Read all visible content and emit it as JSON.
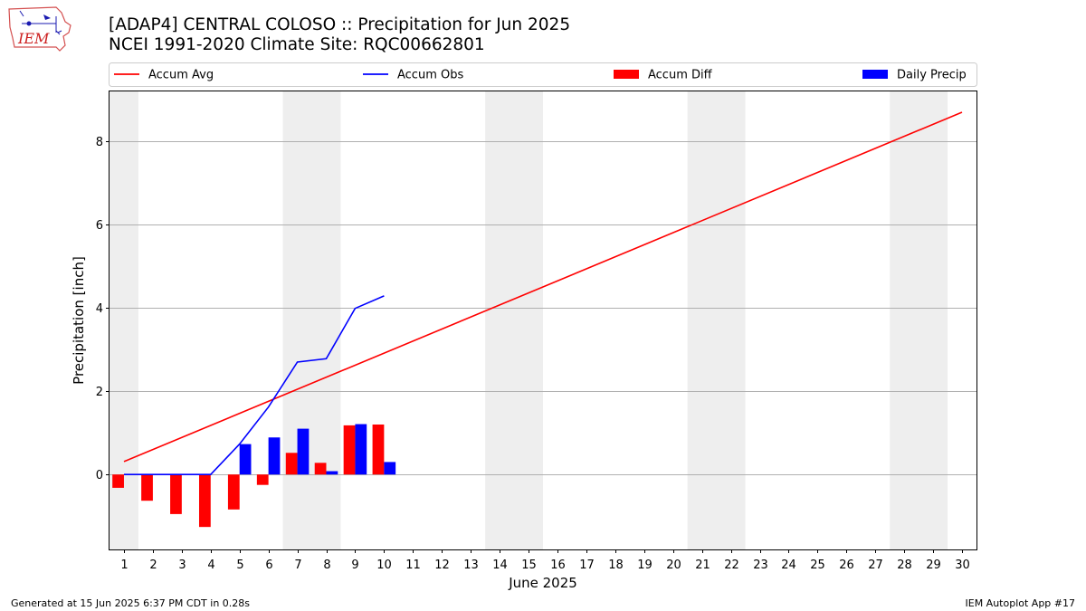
{
  "header": {
    "title": "[ADAP4] CENTRAL COLOSO :: Precipitation for Jun 2025",
    "subtitle": "NCEI 1991-2020 Climate Site: RQC00662801",
    "logo_text": "IEM"
  },
  "footer": {
    "generated": "Generated at 15 Jun 2025 6:37 PM CDT in 0.28s",
    "app": "IEM Autoplot App #17"
  },
  "chart_data": {
    "type": "bar",
    "xlabel": "June 2025",
    "ylabel": "Precipitation [inch]",
    "xlim": [
      0.5,
      30.5
    ],
    "ylim": [
      -1.8,
      9.2
    ],
    "x_ticks": [
      1,
      2,
      3,
      4,
      5,
      6,
      7,
      8,
      9,
      10,
      11,
      12,
      13,
      14,
      15,
      16,
      17,
      18,
      19,
      20,
      21,
      22,
      23,
      24,
      25,
      26,
      27,
      28,
      29,
      30
    ],
    "y_ticks": [
      0,
      2,
      4,
      6,
      8
    ],
    "grid": "horizontal",
    "legend_position": "top",
    "weekend_shading": [
      [
        0.5,
        1.5
      ],
      [
        6.5,
        8.5
      ],
      [
        13.5,
        15.5
      ],
      [
        20.5,
        22.5
      ],
      [
        27.5,
        29.5
      ]
    ],
    "series": [
      {
        "name": "Accum Avg",
        "kind": "line",
        "color": "#ff0000",
        "x": [
          1,
          30
        ],
        "values": [
          0.31,
          8.7
        ]
      },
      {
        "name": "Accum Obs",
        "kind": "line",
        "color": "#0000ff",
        "x": [
          1,
          2,
          3,
          4,
          5,
          6,
          7,
          8,
          9,
          10
        ],
        "values": [
          0.0,
          0.0,
          0.0,
          0.0,
          0.73,
          1.62,
          2.7,
          2.78,
          3.99,
          4.29
        ]
      },
      {
        "name": "Accum Diff",
        "kind": "bar",
        "color": "#ff0000",
        "offset": -0.2,
        "x": [
          1,
          2,
          3,
          4,
          5,
          6,
          7,
          8,
          9,
          10
        ],
        "values": [
          -0.32,
          -0.63,
          -0.95,
          -1.26,
          -0.84,
          -0.25,
          0.52,
          0.28,
          1.18,
          1.2
        ]
      },
      {
        "name": "Daily Precip",
        "kind": "bar",
        "color": "#0000ff",
        "offset": 0.2,
        "x": [
          1,
          2,
          3,
          4,
          5,
          6,
          7,
          8,
          9,
          10
        ],
        "values": [
          0.0,
          0.0,
          0.0,
          0.0,
          0.73,
          0.89,
          1.1,
          0.08,
          1.21,
          0.3
        ]
      }
    ]
  }
}
